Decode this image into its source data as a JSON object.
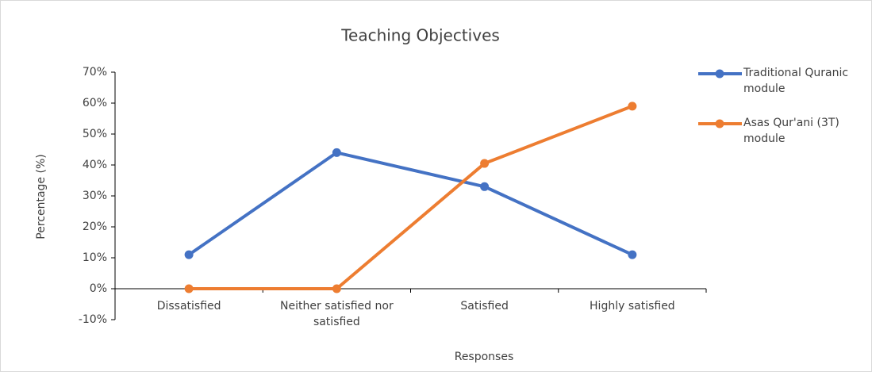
{
  "chart_data": {
    "type": "line",
    "title": "Teaching Objectives",
    "x_label": "Responses",
    "y_label": "Percentage (%)",
    "categories": [
      "Dissatisfied",
      "Neither satisfied nor satisfied",
      "Satisfied",
      "Highly satisfied"
    ],
    "series": [
      {
        "name": "Traditional Quranic module",
        "color": "#4472c4",
        "values": [
          11,
          44,
          33,
          11
        ]
      },
      {
        "name": "Asas Qur'ani (3T) module",
        "color": "#ed7d31",
        "values": [
          0,
          0,
          40.5,
          59
        ]
      }
    ],
    "ylim": [
      -10,
      70
    ],
    "yticks": [
      {
        "value": -10,
        "label": "-10%"
      },
      {
        "value": 0,
        "label": "0%"
      },
      {
        "value": 10,
        "label": "10%"
      },
      {
        "value": 20,
        "label": "20%"
      },
      {
        "value": 30,
        "label": "30%"
      },
      {
        "value": 40,
        "label": "40%"
      },
      {
        "value": 50,
        "label": "50%"
      },
      {
        "value": 60,
        "label": "60%"
      },
      {
        "value": 70,
        "label": "70%"
      }
    ],
    "grid": false,
    "legend": "right"
  }
}
